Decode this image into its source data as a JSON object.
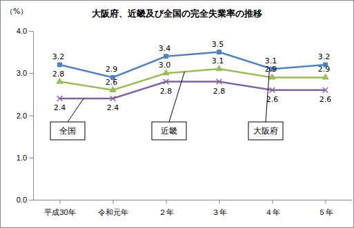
{
  "chart_data": {
    "type": "line",
    "title": "大阪府、近畿及び全国の完全失業率の推移",
    "y_label": "（%）",
    "categories": [
      "平成30年",
      "令和元年",
      "２年",
      "３年",
      "４年",
      "５年"
    ],
    "series": [
      {
        "name": "大阪府",
        "color": "#4f81bd",
        "marker": "square",
        "values": [
          3.2,
          2.9,
          3.4,
          3.5,
          3.1,
          3.2
        ],
        "value_labels": [
          "3.2",
          "2.9",
          "3.4",
          "3.5",
          "3.1",
          "3.2"
        ]
      },
      {
        "name": "近畿",
        "color": "#9bbb59",
        "marker": "triangle",
        "values": [
          2.8,
          2.6,
          3.0,
          3.1,
          2.9,
          2.9
        ],
        "value_labels": [
          "2.8",
          "2.6",
          "3.0",
          "3.1",
          "2.9",
          "2.9"
        ]
      },
      {
        "name": "全国",
        "color": "#8064a2",
        "marker": "x",
        "values": [
          2.4,
          2.4,
          2.8,
          2.8,
          2.6,
          2.6
        ],
        "value_labels": [
          "2.4",
          "2.4",
          "2.8",
          "2.8",
          "2.6",
          "2.6"
        ]
      }
    ],
    "ylim": [
      0,
      4
    ],
    "yticks": [
      {
        "value": 0,
        "label": "0.0"
      },
      {
        "value": 1,
        "label": "1.0"
      },
      {
        "value": 2,
        "label": "2.0"
      },
      {
        "value": 3,
        "label": "3.0"
      },
      {
        "value": 4,
        "label": "4.0"
      }
    ],
    "grid": false,
    "data_labels": true
  }
}
